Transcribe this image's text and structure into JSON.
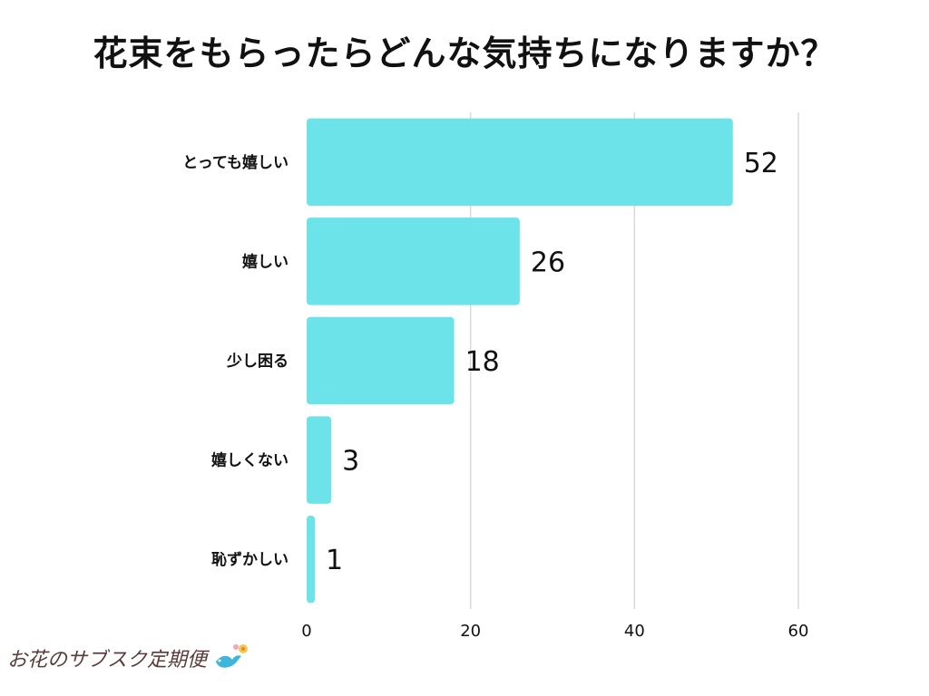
{
  "title": "花束をもらったらどんな気持ちになりますか？",
  "chart_data": {
    "type": "bar",
    "orientation": "horizontal",
    "title": "花束をもらったらどんな気持ちになりますか？",
    "xlabel": "",
    "ylabel": "",
    "categories": [
      "とっても嬉しい",
      "嬉しい",
      "少し困る",
      "嬉しくない",
      "恥ずかしい"
    ],
    "values": [
      52,
      26,
      18,
      3,
      1
    ],
    "xlim": [
      0,
      60
    ],
    "ticks": [
      0,
      20,
      40,
      60
    ],
    "grid": "vertical",
    "bar_color": "#6be3e8"
  },
  "brand": {
    "logo_text": "お花のサブスク定期便",
    "icon": "bird-flower-icon"
  }
}
